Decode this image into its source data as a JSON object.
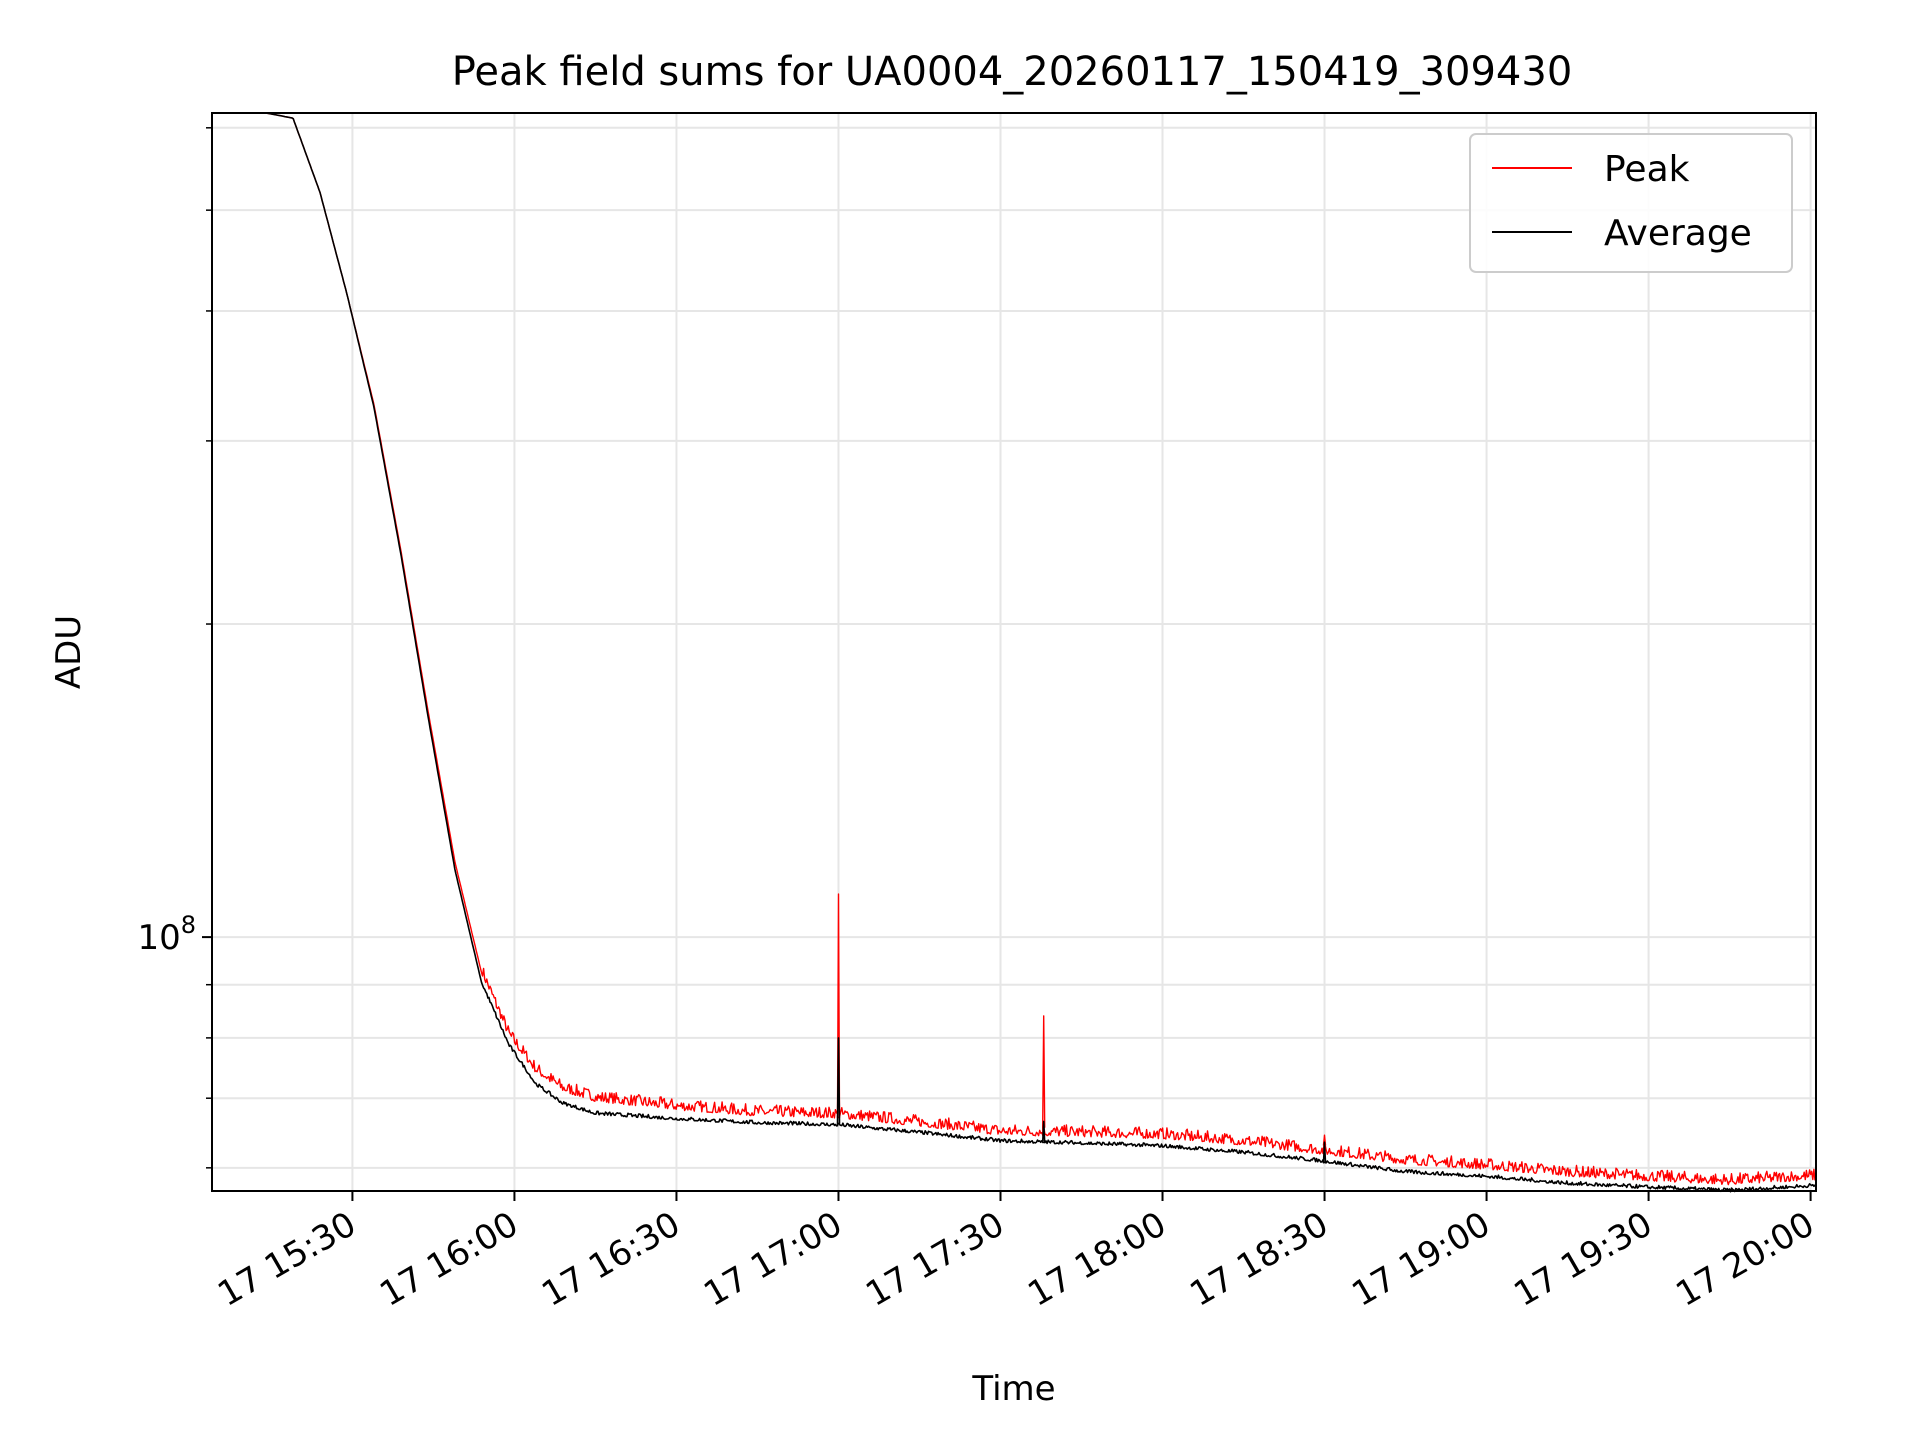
{
  "chart_data": {
    "type": "line",
    "title": "Peak field sums for UA0004_20260117_150419_309430",
    "xlabel": "Time",
    "ylabel": "ADU",
    "y_scale": "log",
    "xlim": [
      "2026-01-17 15:04",
      "2026-01-17 20:01"
    ],
    "ylim": [
      57000000,
      620000000
    ],
    "grid": true,
    "legend_position": "top-right",
    "x_ticks": [
      {
        "value": "2026-01-17 15:30",
        "label": "17 15:30"
      },
      {
        "value": "2026-01-17 16:00",
        "label": "17 16:00"
      },
      {
        "value": "2026-01-17 16:30",
        "label": "17 16:30"
      },
      {
        "value": "2026-01-17 17:00",
        "label": "17 17:00"
      },
      {
        "value": "2026-01-17 17:30",
        "label": "17 17:30"
      },
      {
        "value": "2026-01-17 18:00",
        "label": "17 18:00"
      },
      {
        "value": "2026-01-17 18:30",
        "label": "17 18:30"
      },
      {
        "value": "2026-01-17 19:00",
        "label": "17 19:00"
      },
      {
        "value": "2026-01-17 19:30",
        "label": "17 19:30"
      },
      {
        "value": "2026-01-17 20:00",
        "label": "17 20:00"
      }
    ],
    "y_ticks": [
      {
        "value": 100000000,
        "base": "10",
        "exponent": "8"
      }
    ],
    "y_minor_ticks": [
      60000000,
      70000000,
      80000000,
      90000000,
      200000000,
      300000000,
      400000000,
      500000000,
      600000000
    ],
    "x": [
      "2026-01-17 15:04",
      "2026-01-17 15:14",
      "2026-01-17 15:19",
      "2026-01-17 15:24",
      "2026-01-17 15:29",
      "2026-01-17 15:34",
      "2026-01-17 15:39",
      "2026-01-17 15:44",
      "2026-01-17 15:49",
      "2026-01-17 15:54",
      "2026-01-17 15:59",
      "2026-01-17 16:04",
      "2026-01-17 16:09",
      "2026-01-17 16:15",
      "2026-01-17 16:30",
      "2026-01-17 16:45",
      "2026-01-17 17:00",
      "2026-01-17 17:15",
      "2026-01-17 17:30",
      "2026-01-17 17:45",
      "2026-01-17 18:00",
      "2026-01-17 18:15",
      "2026-01-17 18:30",
      "2026-01-17 18:45",
      "2026-01-17 19:00",
      "2026-01-17 19:15",
      "2026-01-17 19:30",
      "2026-01-17 19:45",
      "2026-01-17 20:00"
    ],
    "series": [
      {
        "name": "Peak",
        "color": "#ff0000",
        "values": [
          620000000,
          620000000,
          613000000,
          520000000,
          415000000,
          325000000,
          235000000,
          165000000,
          118000000,
          92000000,
          80000000,
          74000000,
          71000000,
          69500000,
          68200000,
          67300000,
          67000000,
          65800000,
          64500000,
          64300000,
          64000000,
          63100000,
          61800000,
          60500000,
          59800000,
          58900000,
          58300000,
          57800000,
          58400000
        ],
        "spikes": [
          {
            "x": "2026-01-17 17:00",
            "value": 110000000
          },
          {
            "x": "2026-01-17 17:38",
            "value": 84000000
          },
          {
            "x": "2026-01-17 18:30",
            "value": 64500000
          }
        ]
      },
      {
        "name": "Average",
        "color": "#000000",
        "values": [
          620000000,
          620000000,
          613000000,
          520000000,
          415000000,
          323000000,
          233000000,
          163000000,
          116000000,
          90000000,
          78500000,
          72000000,
          69000000,
          67500000,
          66700000,
          66100000,
          65800000,
          64700000,
          63500000,
          63200000,
          62800000,
          61900000,
          60700000,
          59300000,
          58700000,
          57800000,
          57300000,
          56900000,
          57500000
        ],
        "spikes": [
          {
            "x": "2026-01-17 17:00",
            "value": 80000000
          },
          {
            "x": "2026-01-17 17:38",
            "value": 66500000
          },
          {
            "x": "2026-01-17 18:30",
            "value": 63500000
          }
        ]
      }
    ]
  }
}
